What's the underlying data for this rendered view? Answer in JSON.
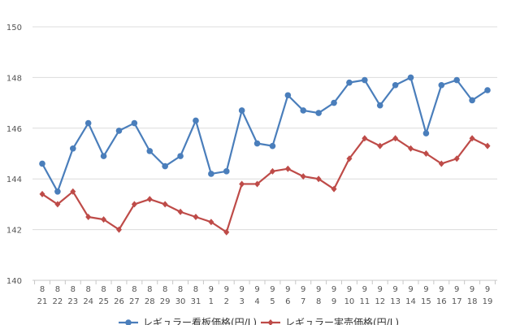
{
  "chart_data": {
    "type": "line",
    "categories": [
      [
        "8",
        "21"
      ],
      [
        "8",
        "22"
      ],
      [
        "8",
        "23"
      ],
      [
        "8",
        "24"
      ],
      [
        "8",
        "25"
      ],
      [
        "8",
        "26"
      ],
      [
        "8",
        "27"
      ],
      [
        "8",
        "28"
      ],
      [
        "8",
        "29"
      ],
      [
        "8",
        "30"
      ],
      [
        "8",
        "31"
      ],
      [
        "9",
        "1"
      ],
      [
        "9",
        "2"
      ],
      [
        "9",
        "3"
      ],
      [
        "9",
        "4"
      ],
      [
        "9",
        "5"
      ],
      [
        "9",
        "6"
      ],
      [
        "9",
        "7"
      ],
      [
        "9",
        "8"
      ],
      [
        "9",
        "9"
      ],
      [
        "9",
        "10"
      ],
      [
        "9",
        "11"
      ],
      [
        "9",
        "12"
      ],
      [
        "9",
        "13"
      ],
      [
        "9",
        "14"
      ],
      [
        "9",
        "15"
      ],
      [
        "9",
        "16"
      ],
      [
        "9",
        "17"
      ],
      [
        "9",
        "18"
      ],
      [
        "9",
        "19"
      ]
    ],
    "ylim": [
      140,
      150
    ],
    "yticks": [
      "140",
      "142",
      "144",
      "146",
      "148",
      "150"
    ],
    "grid": true,
    "legend_position": "bottom",
    "series": [
      {
        "name": "レギュラー看板価格(円/L)",
        "color": "#4a7ebb",
        "marker": "circle",
        "values": [
          144.6,
          143.5,
          145.2,
          146.2,
          144.9,
          145.9,
          146.2,
          145.1,
          144.5,
          144.9,
          146.3,
          144.2,
          144.3,
          146.7,
          145.4,
          145.3,
          147.3,
          146.7,
          146.6,
          147.0,
          147.8,
          147.9,
          146.9,
          147.7,
          148.0,
          145.8,
          147.7,
          147.9,
          147.1,
          147.5
        ]
      },
      {
        "name": "レギュラー実売価格(円/L)",
        "color": "#be4b48",
        "marker": "diamond",
        "values": [
          143.4,
          143.0,
          143.5,
          142.5,
          142.4,
          142.0,
          143.0,
          143.2,
          143.0,
          142.7,
          142.5,
          142.3,
          141.9,
          143.8,
          143.8,
          144.3,
          144.4,
          144.1,
          144.0,
          143.6,
          144.8,
          145.6,
          145.3,
          145.6,
          145.2,
          145.0,
          144.6,
          144.8,
          145.6,
          145.3
        ]
      }
    ]
  }
}
